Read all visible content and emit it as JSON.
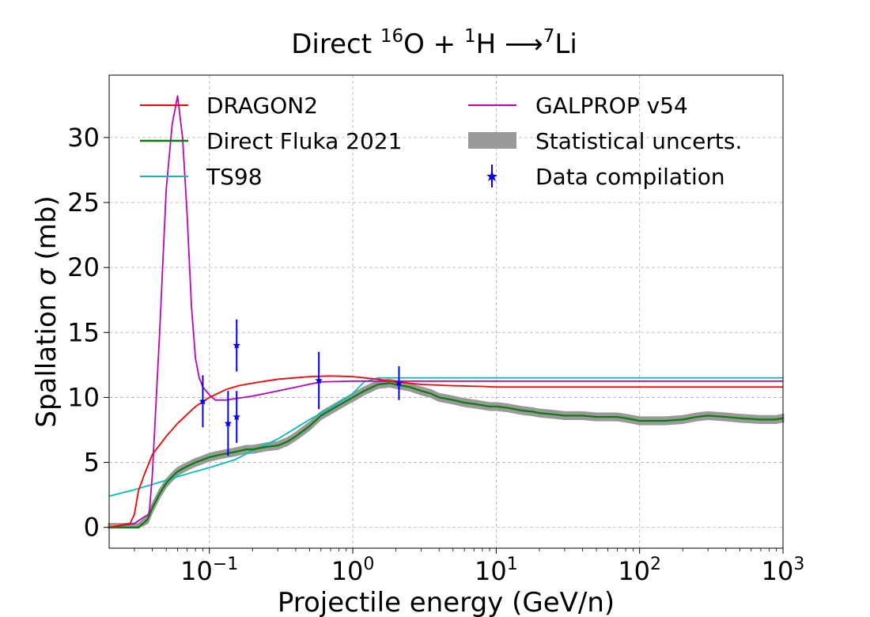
{
  "chart_data": {
    "type": "line",
    "title": {
      "prefix": "Direct ",
      "sup1": "16",
      "mid1": "O + ",
      "sup2": "1",
      "mid2": "H ",
      "arrow": "⟶",
      "sup3": "7",
      "end": "Li"
    },
    "xlabel": "Projectile energy (GeV/n)",
    "ylabel": {
      "pre": "Spallation ",
      "sym": "σ",
      "post": " (mb)"
    },
    "xscale": "log",
    "xlim": [
      0.02,
      1000
    ],
    "ylim": [
      -1.6,
      34.8
    ],
    "grid": true,
    "legend_position": "top",
    "x_ticks": [
      {
        "value": 0.1,
        "base": "10",
        "exp": "−1"
      },
      {
        "value": 1,
        "base": "10",
        "exp": "0"
      },
      {
        "value": 10,
        "base": "10",
        "exp": "1"
      },
      {
        "value": 100,
        "base": "10",
        "exp": "2"
      },
      {
        "value": 1000,
        "base": "10",
        "exp": "3"
      }
    ],
    "y_ticks": [
      {
        "value": 0,
        "label": "0"
      },
      {
        "value": 5,
        "label": "5"
      },
      {
        "value": 10,
        "label": "10"
      },
      {
        "value": 15,
        "label": "15"
      },
      {
        "value": 20,
        "label": "20"
      },
      {
        "value": 25,
        "label": "25"
      },
      {
        "value": 30,
        "label": "30"
      }
    ],
    "series": [
      {
        "name": "DRAGON2",
        "color": "#ff0000",
        "x": [
          0.02,
          0.028,
          0.03,
          0.032,
          0.035,
          0.04,
          0.05,
          0.06,
          0.07,
          0.08,
          0.1,
          0.13,
          0.16,
          0.2,
          0.3,
          0.5,
          0.7,
          1.0,
          1.5,
          2,
          3,
          5,
          8,
          10,
          100,
          1000
        ],
        "y": [
          0,
          0.3,
          1.0,
          2.8,
          4.0,
          5.6,
          7.0,
          8.0,
          8.7,
          9.3,
          10.0,
          10.6,
          10.9,
          11.1,
          11.4,
          11.6,
          11.65,
          11.6,
          11.4,
          11.2,
          11.0,
          10.9,
          10.85,
          10.8,
          10.8,
          10.8
        ]
      },
      {
        "name": "Direct Fluka 2021",
        "color": "#0a7d0a",
        "band_color": "#999999",
        "x": [
          0.02,
          0.032,
          0.037,
          0.04,
          0.045,
          0.05,
          0.055,
          0.06,
          0.07,
          0.08,
          0.09,
          0.1,
          0.12,
          0.15,
          0.18,
          0.2,
          0.25,
          0.3,
          0.35,
          0.4,
          0.5,
          0.6,
          0.8,
          1.0,
          1.2,
          1.5,
          1.8,
          2.0,
          2.5,
          3,
          3.5,
          4,
          5,
          6,
          7,
          8,
          9,
          10,
          12,
          15,
          18,
          20,
          25,
          30,
          40,
          50,
          60,
          70,
          80,
          90,
          100,
          120,
          150,
          200,
          250,
          300,
          400,
          500,
          700,
          900,
          1000
        ],
        "y": [
          0,
          0,
          0.6,
          1.5,
          2.6,
          3.4,
          3.9,
          4.3,
          4.7,
          5.0,
          5.2,
          5.4,
          5.6,
          5.8,
          6.0,
          6.0,
          6.2,
          6.3,
          6.6,
          7.0,
          7.8,
          8.6,
          9.4,
          10.0,
          10.5,
          11.0,
          11.1,
          11.0,
          10.8,
          10.5,
          10.3,
          10.0,
          9.8,
          9.6,
          9.5,
          9.4,
          9.3,
          9.3,
          9.2,
          9.0,
          8.9,
          8.8,
          8.7,
          8.6,
          8.6,
          8.5,
          8.5,
          8.5,
          8.4,
          8.3,
          8.2,
          8.2,
          8.2,
          8.3,
          8.5,
          8.6,
          8.5,
          8.4,
          8.3,
          8.3,
          8.4
        ]
      },
      {
        "name": "TS98",
        "color": "#00bfbf",
        "x": [
          0.02,
          0.03,
          0.04,
          0.06,
          0.08,
          0.1,
          0.15,
          0.2,
          0.3,
          0.5,
          0.7,
          1.0,
          1.2,
          1.5,
          2,
          5,
          10,
          100,
          1000
        ],
        "y": [
          2.4,
          2.9,
          3.3,
          3.9,
          4.3,
          4.6,
          5.2,
          5.9,
          6.8,
          8.3,
          9.2,
          10.3,
          11.2,
          11.5,
          11.5,
          11.5,
          11.5,
          11.5,
          11.5
        ]
      },
      {
        "name": "GALPROP v54",
        "color": "#bf00bf",
        "x": [
          0.02,
          0.03,
          0.035,
          0.038,
          0.04,
          0.045,
          0.05,
          0.055,
          0.06,
          0.065,
          0.07,
          0.075,
          0.08,
          0.085,
          0.09,
          0.1,
          0.11,
          0.13,
          0.2,
          0.3,
          0.6,
          1.0,
          10,
          100,
          1000
        ],
        "y": [
          0,
          0.3,
          0.8,
          1.0,
          4.0,
          15.0,
          26.0,
          31.0,
          33.2,
          30.0,
          24.0,
          17.0,
          13.0,
          11.5,
          10.8,
          10.2,
          9.8,
          9.8,
          10.1,
          10.5,
          11.2,
          11.25,
          11.25,
          11.25,
          11.25
        ]
      }
    ],
    "uncertainty": {
      "name": "Statistical uncerts.",
      "half_width": 0.25
    },
    "data_points": {
      "name": "Data compilation",
      "color": "#0000ff",
      "points": [
        {
          "x": 0.09,
          "y": 9.7,
          "err": 2.0
        },
        {
          "x": 0.135,
          "y": 8.0,
          "err": 2.5
        },
        {
          "x": 0.155,
          "y": 8.5,
          "err": 2.0
        },
        {
          "x": 0.155,
          "y": 14.0,
          "err": 2.0
        },
        {
          "x": 0.58,
          "y": 11.3,
          "err": 2.2
        },
        {
          "x": 2.1,
          "y": 11.1,
          "err": 1.3
        }
      ]
    }
  }
}
